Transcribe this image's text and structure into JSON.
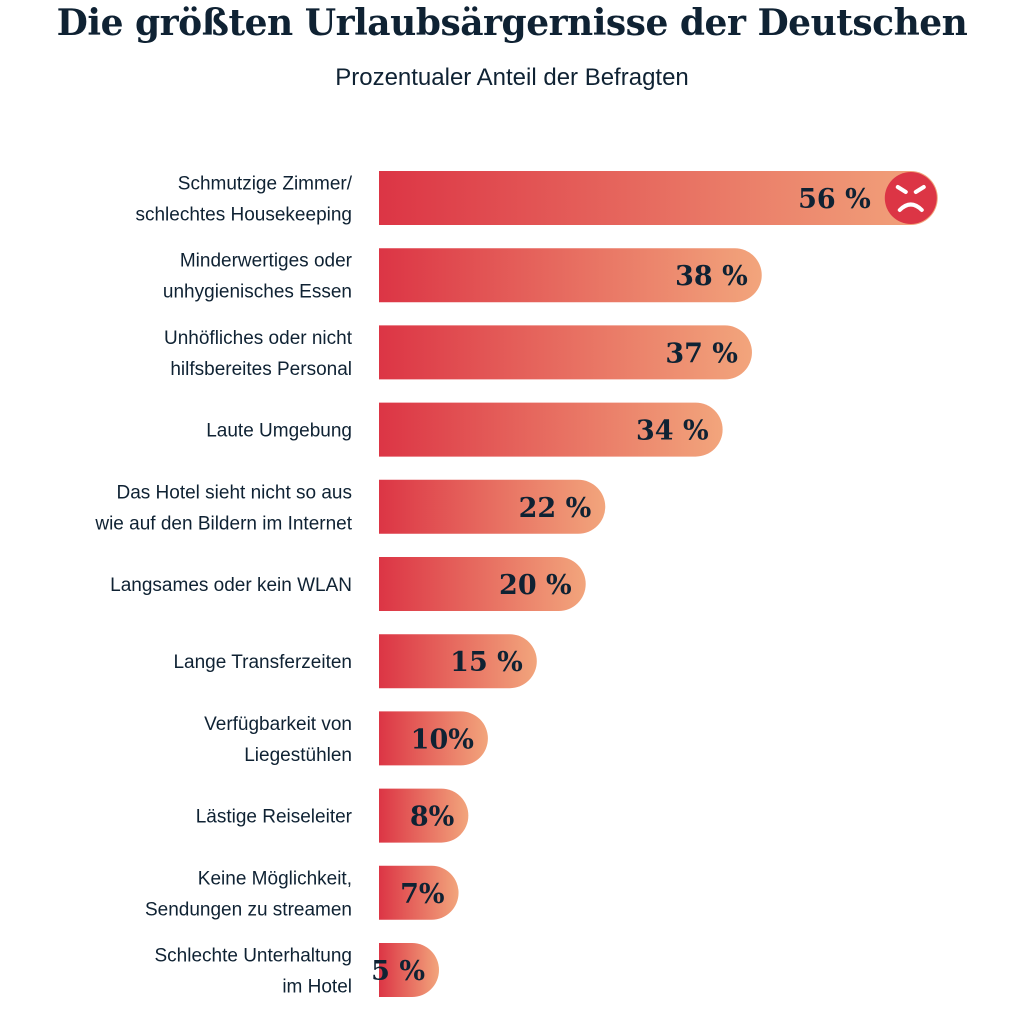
{
  "chart_data": {
    "type": "bar",
    "orientation": "horizontal",
    "title": "Die größten Urlaubsärgernisse der Deutschen",
    "subtitle": "Prozentualer Anteil der Befragten",
    "unit": "%",
    "categories": [
      [
        "Schmutzige Zimmer/",
        "schlechtes Housekeeping"
      ],
      [
        "Minderwertiges oder",
        "unhygienisches Essen"
      ],
      [
        "Unhöfliches oder nicht",
        "hilfsbereites Personal"
      ],
      [
        "Laute Umgebung"
      ],
      [
        "Das Hotel sieht nicht so aus",
        "wie auf den Bildern im Internet"
      ],
      [
        "Langsames oder kein WLAN"
      ],
      [
        "Lange Transferzeiten"
      ],
      [
        "Verfügbarkeit von",
        "Liegestühlen"
      ],
      [
        "Lästige Reiseleiter"
      ],
      [
        "Keine Möglichkeit,",
        "Sendungen zu streamen"
      ],
      [
        "Schlechte Unterhaltung",
        "im Hotel"
      ]
    ],
    "values": [
      56,
      38,
      37,
      34,
      22,
      20,
      15,
      10,
      8,
      7,
      5
    ],
    "value_labels": [
      "56 %",
      "38 %",
      "37 %",
      "34 %",
      "22 %",
      "20 %",
      "15 %",
      "10%",
      "8%",
      "7%",
      "5 %"
    ],
    "highlight_icon": "angry-face-icon",
    "colors": {
      "gradient_start": "#dc3545",
      "gradient_end": "#f2a57c",
      "icon": "#dc3545",
      "text": "#0f2233"
    },
    "grid": false,
    "legend": "none"
  }
}
